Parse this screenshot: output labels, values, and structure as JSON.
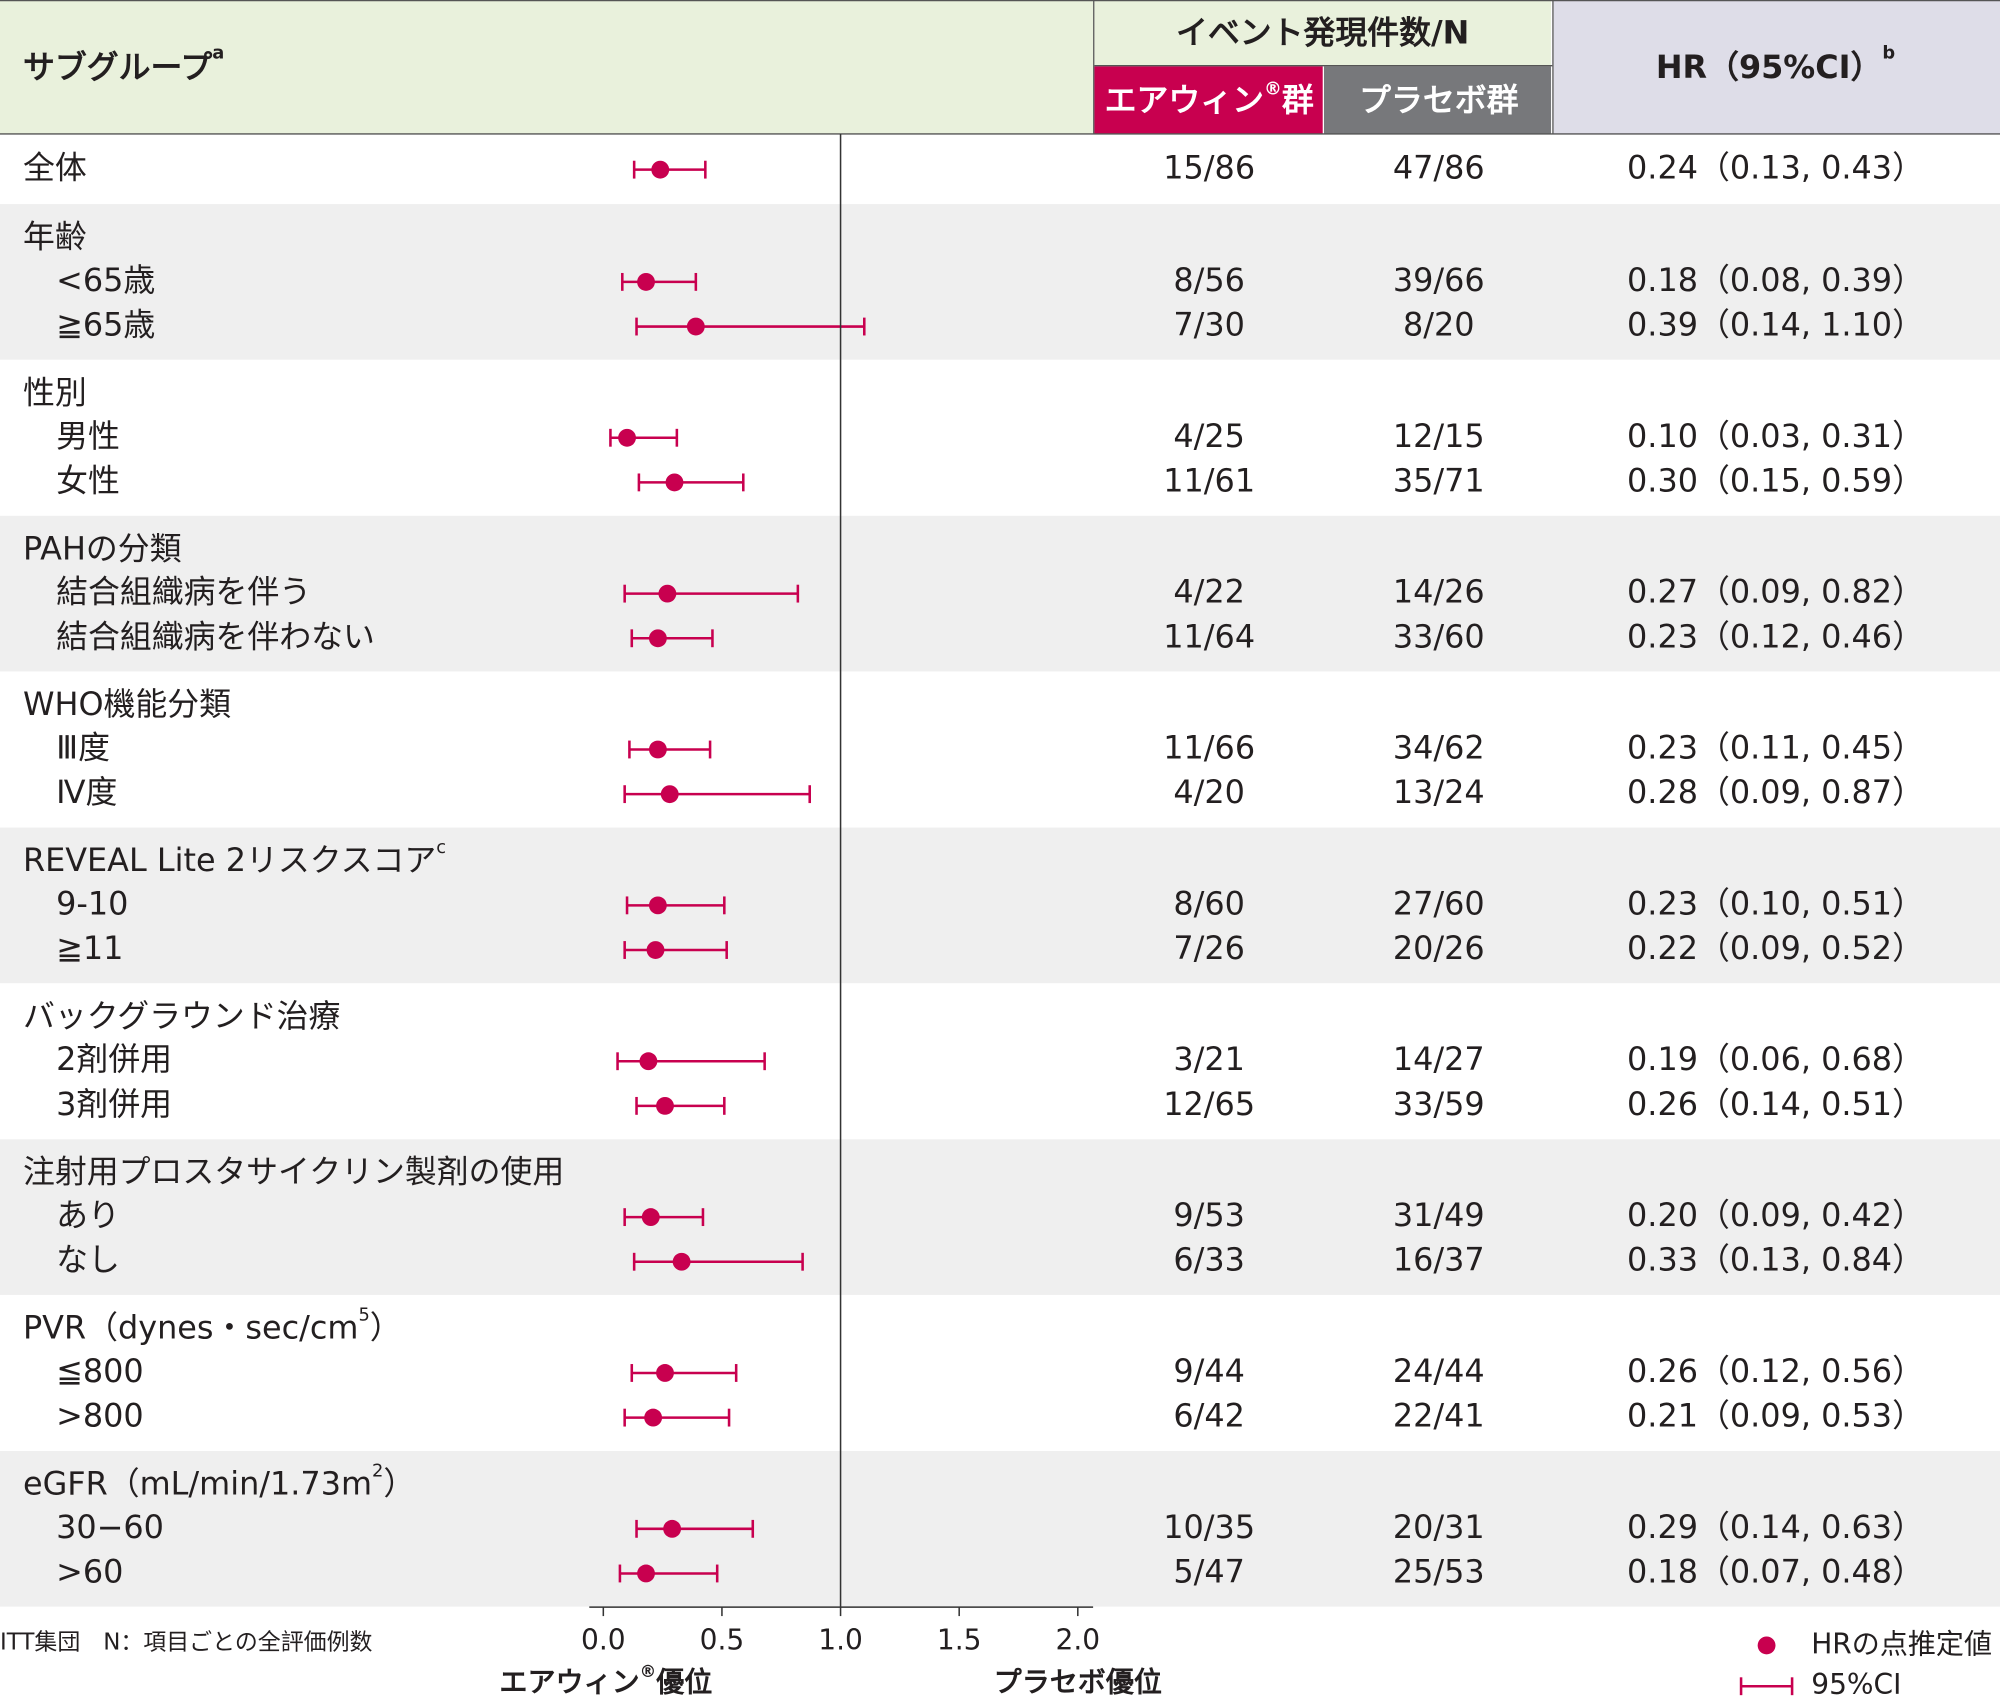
{
  "chart_data": {
    "type": "forest",
    "header": {
      "subgroup": "サブグループ",
      "subgroup_note": "a",
      "events": "イベント発現件数/N",
      "arm1": "エアウィン",
      "arm1_mark": "®",
      "arm1_suffix": "群",
      "arm2": "プラセボ群",
      "hr": "HR（95%CI）",
      "hr_note": "b"
    },
    "color": "#c8004f",
    "overall": {
      "name": "全体",
      "arm1": "15/86",
      "arm2": "47/86",
      "hr": 0.24,
      "ci": [
        0.13,
        0.43
      ],
      "label": "0.24（0.13, 0.43）"
    },
    "groups": [
      {
        "name": "年齢",
        "items": [
          {
            "name": "<65歳",
            "arm1": "8/56",
            "arm2": "39/66",
            "hr": 0.18,
            "ci": [
              0.08,
              0.39
            ],
            "label": "0.18（0.08, 0.39）"
          },
          {
            "name": "≧65歳",
            "arm1": "7/30",
            "arm2": "8/20",
            "hr": 0.39,
            "ci": [
              0.14,
              1.1
            ],
            "label": "0.39（0.14, 1.10）"
          }
        ]
      },
      {
        "name": "性別",
        "items": [
          {
            "name": "男性",
            "arm1": "4/25",
            "arm2": "12/15",
            "hr": 0.1,
            "ci": [
              0.03,
              0.31
            ],
            "label": "0.10（0.03, 0.31）"
          },
          {
            "name": "女性",
            "arm1": "11/61",
            "arm2": "35/71",
            "hr": 0.3,
            "ci": [
              0.15,
              0.59
            ],
            "label": "0.30（0.15, 0.59）"
          }
        ]
      },
      {
        "name": "PAHの分類",
        "items": [
          {
            "name": "結合組織病を伴う",
            "arm1": "4/22",
            "arm2": "14/26",
            "hr": 0.27,
            "ci": [
              0.09,
              0.82
            ],
            "label": "0.27（0.09, 0.82）"
          },
          {
            "name": "結合組織病を伴わない",
            "arm1": "11/64",
            "arm2": "33/60",
            "hr": 0.23,
            "ci": [
              0.12,
              0.46
            ],
            "label": "0.23（0.12, 0.46）"
          }
        ]
      },
      {
        "name": "WHO機能分類",
        "items": [
          {
            "name": "Ⅲ度",
            "arm1": "11/66",
            "arm2": "34/62",
            "hr": 0.23,
            "ci": [
              0.11,
              0.45
            ],
            "label": "0.23（0.11, 0.45）"
          },
          {
            "name": "Ⅳ度",
            "arm1": "4/20",
            "arm2": "13/24",
            "hr": 0.28,
            "ci": [
              0.09,
              0.87
            ],
            "label": "0.28（0.09, 0.87）"
          }
        ]
      },
      {
        "name": "REVEAL Lite 2リスクスコア",
        "name_sup": "c",
        "items": [
          {
            "name": "9-10",
            "arm1": "8/60",
            "arm2": "27/60",
            "hr": 0.23,
            "ci": [
              0.1,
              0.51
            ],
            "label": "0.23（0.10, 0.51）"
          },
          {
            "name": "≧11",
            "arm1": "7/26",
            "arm2": "20/26",
            "hr": 0.22,
            "ci": [
              0.09,
              0.52
            ],
            "label": "0.22（0.09, 0.52）"
          }
        ]
      },
      {
        "name": "バックグラウンド治療",
        "items": [
          {
            "name": "2剤併用",
            "arm1": "3/21",
            "arm2": "14/27",
            "hr": 0.19,
            "ci": [
              0.06,
              0.68
            ],
            "label": "0.19（0.06, 0.68）"
          },
          {
            "name": "3剤併用",
            "arm1": "12/65",
            "arm2": "33/59",
            "hr": 0.26,
            "ci": [
              0.14,
              0.51
            ],
            "label": "0.26（0.14, 0.51）"
          }
        ]
      },
      {
        "name": "注射用プロスタサイクリン製剤の使用",
        "items": [
          {
            "name": "あり",
            "arm1": "9/53",
            "arm2": "31/49",
            "hr": 0.2,
            "ci": [
              0.09,
              0.42
            ],
            "label": "0.20（0.09, 0.42）"
          },
          {
            "name": "なし",
            "arm1": "6/33",
            "arm2": "16/37",
            "hr": 0.33,
            "ci": [
              0.13,
              0.84
            ],
            "label": "0.33（0.13, 0.84）"
          }
        ]
      },
      {
        "name": "PVR（dynes・sec/cm",
        "name_sup": "5",
        "name_end": "）",
        "items": [
          {
            "name": "≦800",
            "arm1": "9/44",
            "arm2": "24/44",
            "hr": 0.26,
            "ci": [
              0.12,
              0.56
            ],
            "label": "0.26（0.12, 0.56）"
          },
          {
            "name": ">800",
            "arm1": "6/42",
            "arm2": "22/41",
            "hr": 0.21,
            "ci": [
              0.09,
              0.53
            ],
            "label": "0.21（0.09, 0.53）"
          }
        ]
      },
      {
        "name": "eGFR（mL/min/1.73m",
        "name_sup": "2",
        "name_end": "）",
        "items": [
          {
            "name": "30−60",
            "arm1": "10/35",
            "arm2": "20/31",
            "hr": 0.29,
            "ci": [
              0.14,
              0.63
            ],
            "label": "0.29（0.14, 0.63）"
          },
          {
            "name": ">60",
            "arm1": "5/47",
            "arm2": "25/53",
            "hr": 0.18,
            "ci": [
              0.07,
              0.48
            ],
            "label": "0.18（0.07, 0.48）"
          }
        ]
      }
    ],
    "xlim": [
      0,
      2
    ],
    "xticks": [
      {
        "value": 0,
        "label": "0.0"
      },
      {
        "value": 0.5,
        "label": "0.5"
      },
      {
        "value": 1,
        "label": "1.0"
      },
      {
        "value": 1.5,
        "label": "1.5"
      },
      {
        "value": 2,
        "label": "2.0"
      }
    ],
    "footnote": "ITT集団　N：項目ごとの全評価例数",
    "x_left_label": "エアウィン",
    "x_left_mark": "®",
    "x_left_suffix": "優位",
    "x_right_label": "プラセボ優位",
    "legend": {
      "point": "HRの点推定値",
      "ci": "95%CI"
    }
  }
}
